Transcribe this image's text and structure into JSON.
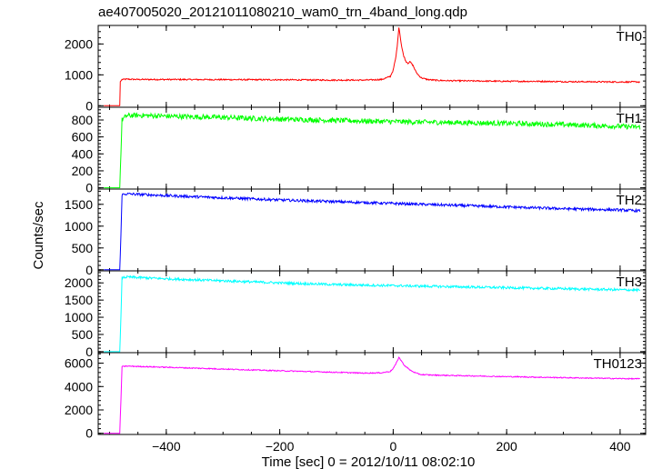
{
  "chart_data": {
    "type": "line",
    "title": "ae407005020_20121011080210_wam0_trn_4band_long.qdp",
    "xlabel": "Time [sec] 0 = 2012/10/11 08:02:10",
    "ylabel": "Counts/sec",
    "xlim": [
      -520,
      445
    ],
    "x_ticks": [
      -400,
      -200,
      0,
      200,
      400
    ],
    "x_tick_labels": [
      "−400",
      "−200",
      "0",
      "200",
      "400"
    ],
    "grid": false,
    "panels": [
      {
        "name": "TH0",
        "color": "#ff0000",
        "ylim": [
          -50,
          2600
        ],
        "y_ticks": [
          0,
          1000,
          2000
        ],
        "y_tick_labels": [
          "0",
          "1000",
          "2000"
        ],
        "x": [
          -510,
          -482,
          -481,
          -478,
          -470,
          -450,
          -400,
          -300,
          -200,
          -100,
          -50,
          -20,
          -5,
          0,
          5,
          8,
          10,
          12,
          15,
          18,
          22,
          26,
          30,
          35,
          40,
          45,
          50,
          60,
          70,
          80,
          100,
          150,
          200,
          250,
          300,
          350,
          400,
          435
        ],
        "values": [
          0,
          0,
          780,
          850,
          860,
          850,
          850,
          845,
          840,
          830,
          830,
          850,
          950,
          1150,
          1600,
          2100,
          2550,
          2300,
          1900,
          1650,
          1450,
          1380,
          1420,
          1300,
          1100,
          980,
          900,
          850,
          830,
          820,
          810,
          800,
          790,
          790,
          780,
          775,
          770,
          770
        ],
        "noise": 22
      },
      {
        "name": "TH1",
        "color": "#00ff00",
        "ylim": [
          -15,
          950
        ],
        "y_ticks": [
          0,
          200,
          400,
          600,
          800
        ],
        "y_tick_labels": [
          "0",
          "200",
          "400",
          "600",
          "800"
        ],
        "x": [
          -510,
          -482,
          -481,
          -478,
          -470,
          -450,
          -400,
          -300,
          -200,
          -100,
          0,
          100,
          200,
          300,
          400,
          435
        ],
        "values": [
          0,
          0,
          200,
          800,
          850,
          855,
          845,
          830,
          810,
          795,
          780,
          770,
          760,
          745,
          725,
          715
        ],
        "noise": 30
      },
      {
        "name": "TH2",
        "color": "#0000ff",
        "ylim": [
          -25,
          1850
        ],
        "y_ticks": [
          0,
          500,
          1000,
          1500
        ],
        "y_tick_labels": [
          "0",
          "500",
          "1000",
          "1500"
        ],
        "x": [
          -510,
          -482,
          -481,
          -478,
          -470,
          -400,
          -300,
          -200,
          -100,
          0,
          100,
          200,
          300,
          400,
          435
        ],
        "values": [
          0,
          0,
          350,
          1720,
          1740,
          1700,
          1650,
          1600,
          1560,
          1520,
          1480,
          1440,
          1400,
          1370,
          1350
        ],
        "noise": 30
      },
      {
        "name": "TH3",
        "color": "#00ffff",
        "ylim": [
          -30,
          2350
        ],
        "y_ticks": [
          0,
          500,
          1000,
          1500,
          2000
        ],
        "y_tick_labels": [
          "0",
          "500",
          "1000",
          "1500",
          "2000"
        ],
        "x": [
          -510,
          -482,
          -481,
          -478,
          -470,
          -400,
          -300,
          -200,
          -100,
          0,
          100,
          200,
          300,
          400,
          435
        ],
        "values": [
          0,
          0,
          450,
          2150,
          2170,
          2120,
          2060,
          2000,
          1950,
          1920,
          1890,
          1860,
          1830,
          1800,
          1790
        ],
        "noise": 35
      },
      {
        "name": "TH0123",
        "color": "#ff00ff",
        "ylim": [
          -100,
          6900
        ],
        "y_ticks": [
          0,
          2000,
          4000,
          6000
        ],
        "y_tick_labels": [
          "0",
          "2000",
          "4000",
          "6000"
        ],
        "x": [
          -510,
          -482,
          -481,
          -478,
          -470,
          -400,
          -300,
          -200,
          -100,
          -50,
          -20,
          -5,
          0,
          5,
          10,
          15,
          20,
          30,
          40,
          50,
          70,
          100,
          200,
          300,
          400,
          435
        ],
        "values": [
          0,
          0,
          1400,
          5700,
          5750,
          5650,
          5500,
          5350,
          5220,
          5150,
          5180,
          5300,
          5550,
          5950,
          6500,
          6150,
          5800,
          5400,
          5150,
          5020,
          4980,
          4950,
          4850,
          4760,
          4680,
          4660
        ],
        "noise": 45
      }
    ]
  }
}
